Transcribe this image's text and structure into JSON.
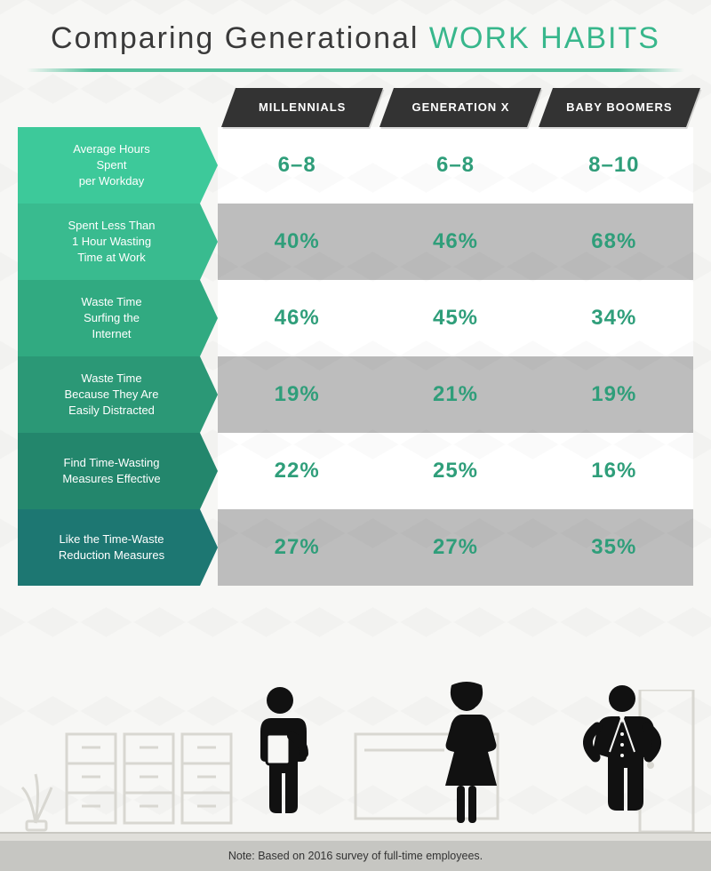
{
  "title_a": "Comparing Generational",
  "title_b": "WORK HABITS",
  "columns": [
    "MILLENNIALS",
    "GENERATION X",
    "BABY BOOMERS"
  ],
  "rows": [
    {
      "label": "Average Hours\nSpent\nper Workday",
      "values": [
        "6–8",
        "6–8",
        "8–10"
      ],
      "label_color": "#3dc99a",
      "row_bg": "#ffffff"
    },
    {
      "label": "Spent Less Than\n1 Hour Wasting\nTime at Work",
      "values": [
        "40%",
        "46%",
        "68%"
      ],
      "label_color": "#39bb8f",
      "row_bg": "#bdbdbd"
    },
    {
      "label": "Waste Time\nSurfing the\nInternet",
      "values": [
        "46%",
        "45%",
        "34%"
      ],
      "label_color": "#31aa81",
      "row_bg": "#ffffff"
    },
    {
      "label": "Waste Time\nBecause They Are\nEasily Distracted",
      "values": [
        "19%",
        "21%",
        "19%"
      ],
      "label_color": "#2b9876",
      "row_bg": "#bdbdbd"
    },
    {
      "label": "Find Time-Wasting\nMeasures Effective",
      "values": [
        "22%",
        "25%",
        "16%"
      ],
      "label_color": "#23866c",
      "row_bg": "#ffffff"
    },
    {
      "label": "Like the Time-Waste\nReduction Measures",
      "values": [
        "27%",
        "27%",
        "35%"
      ],
      "label_color": "#1d7772",
      "row_bg": "#bdbdbd"
    }
  ],
  "value_color": "#2f9e7a",
  "head_bg": "#333333",
  "note": "Note: Based on 2016 survey of full-time employees.",
  "note_bg": "#c6c6c2",
  "page_bg": "#f7f7f5",
  "figure_color": "#111111",
  "furniture_color": "#e3e2dd"
}
